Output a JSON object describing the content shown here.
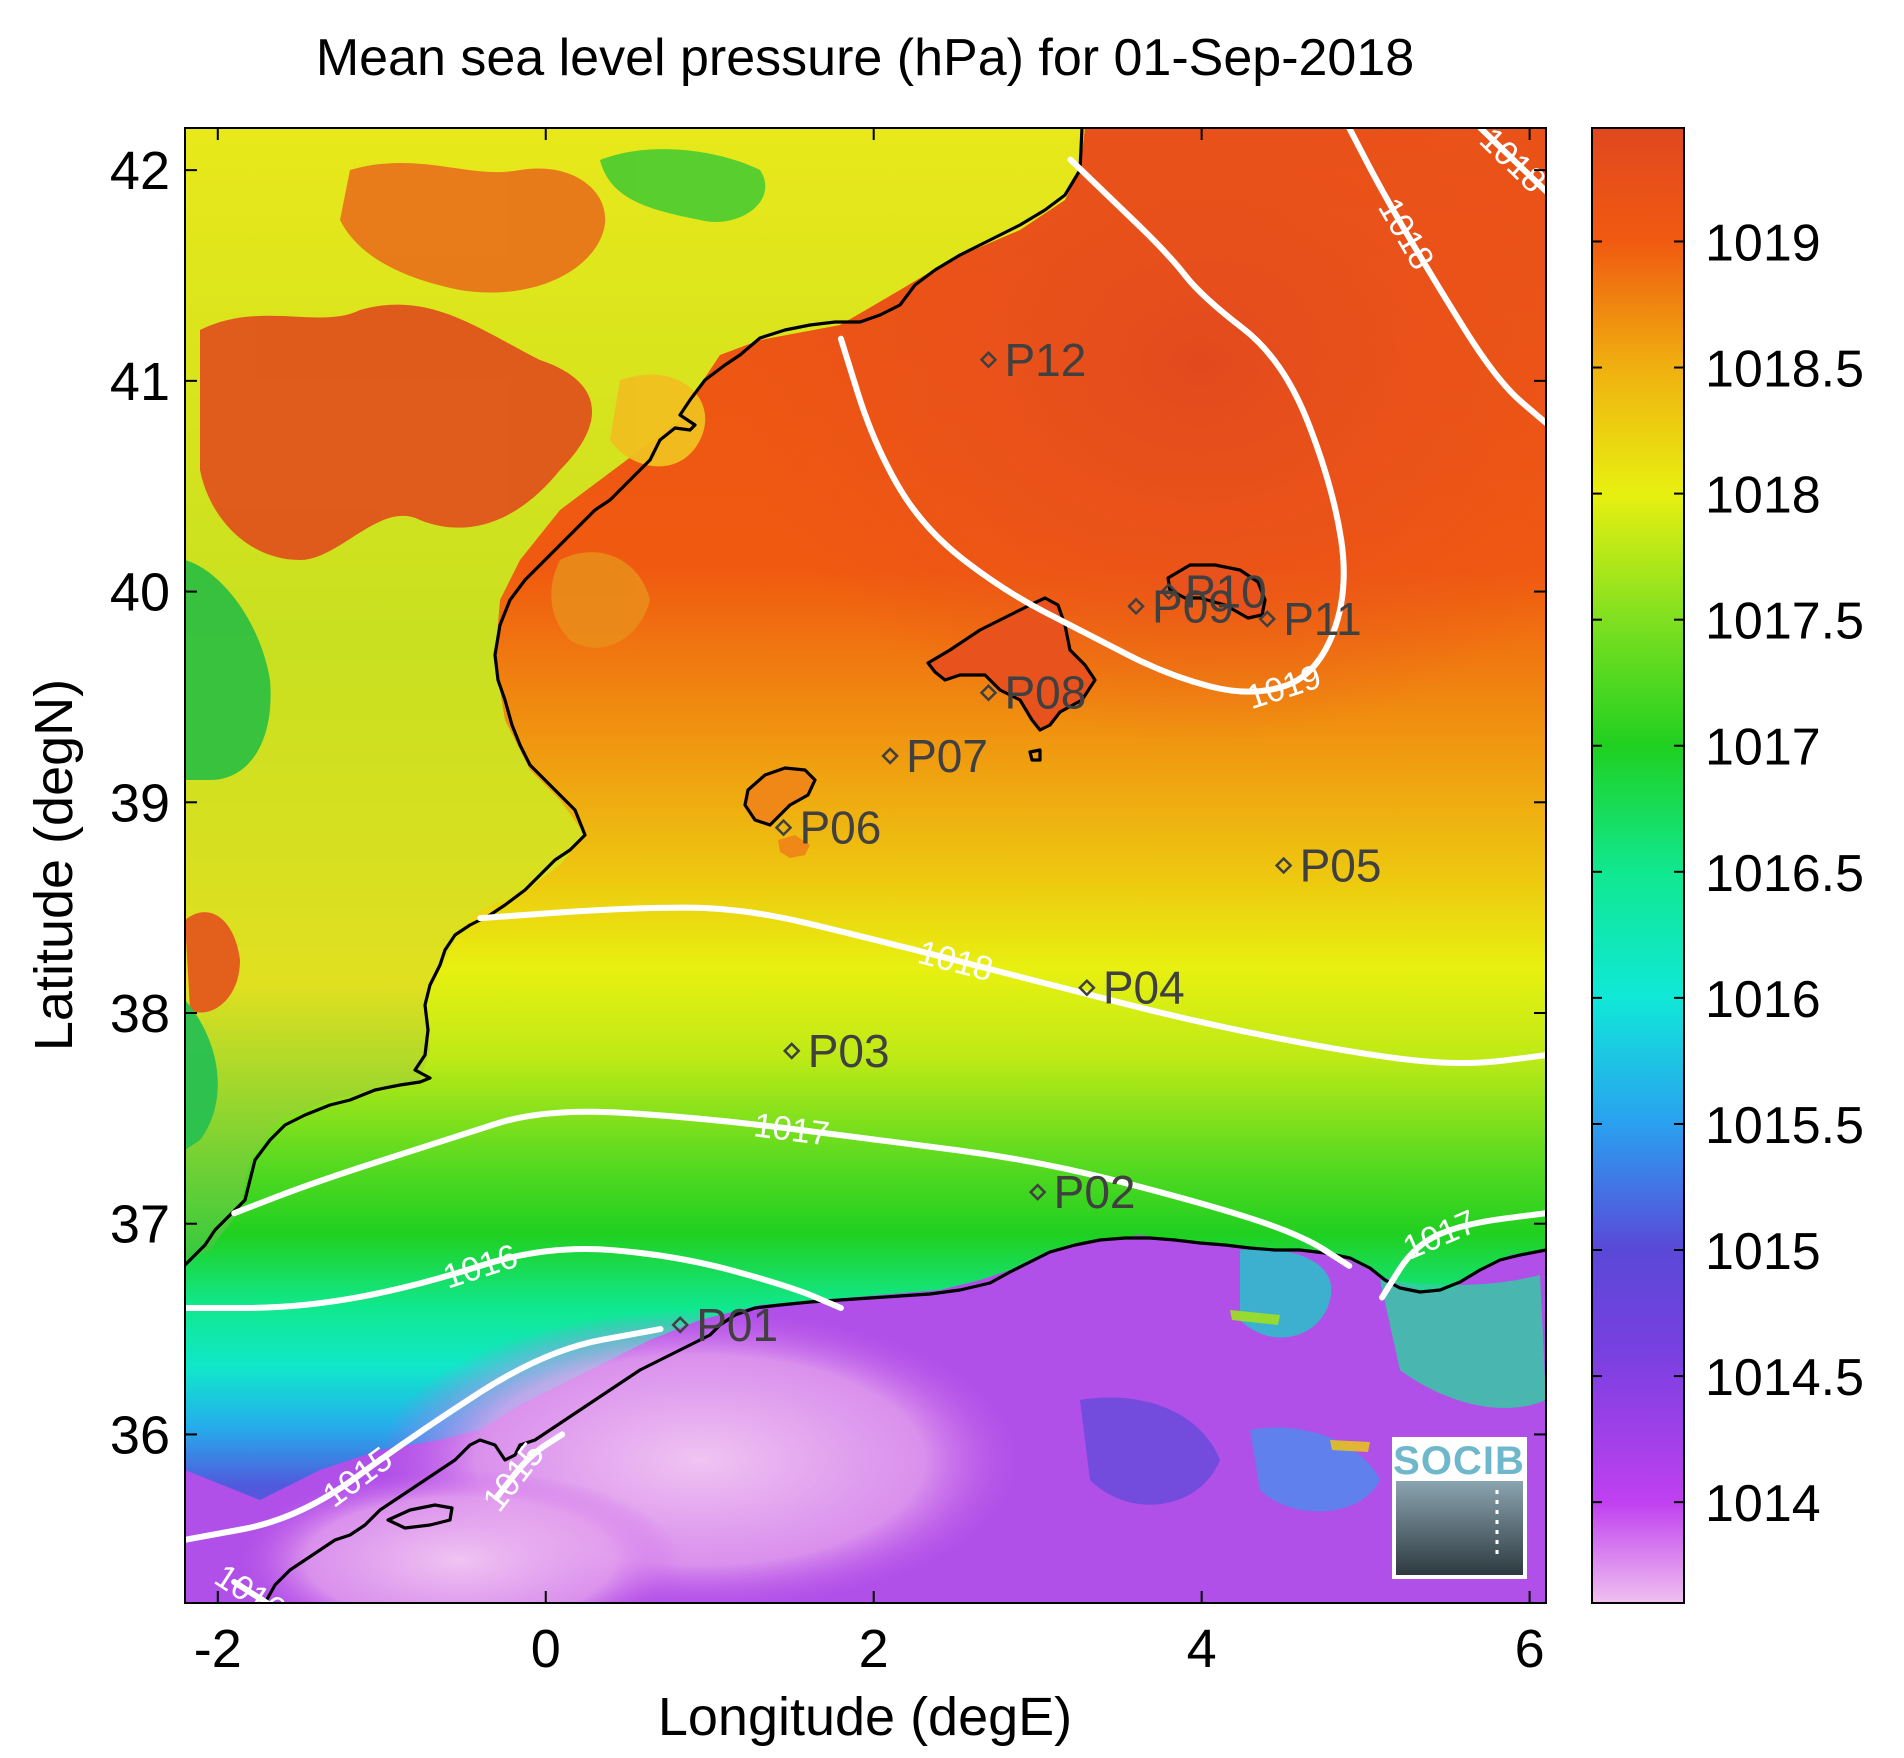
{
  "title": "Mean sea level pressure (hPa) for 01-Sep-2018",
  "logo_text": "SOCIB",
  "colors": {
    "land_low": "#1dbf3a",
    "land_mid": "#e8e81a",
    "land_high": "#e8501c",
    "contour": "#ffffff",
    "coastline": "#000000",
    "station": "#404040",
    "logo": "#6fb8cc"
  },
  "chart_data": {
    "type": "heatmap",
    "title": "Mean sea level pressure (hPa) for 01-Sep-2018",
    "xlabel": "Longitude (degE)",
    "ylabel": "Latitude (degN)",
    "xlim": [
      -2.2,
      6.1
    ],
    "ylim": [
      35.2,
      42.2
    ],
    "xticks": [
      -2,
      0,
      2,
      4,
      6
    ],
    "yticks": [
      36,
      37,
      38,
      39,
      40,
      41,
      42
    ],
    "colorbar": {
      "range": [
        1013.6,
        1019.45
      ],
      "ticks": [
        1014,
        1014.5,
        1015,
        1015.5,
        1016,
        1016.5,
        1017,
        1017.5,
        1018,
        1018.5,
        1019
      ],
      "colormap": [
        [
          1013.6,
          "#f0c0f0"
        ],
        [
          1014.0,
          "#c040f0"
        ],
        [
          1014.6,
          "#7840e0"
        ],
        [
          1015.0,
          "#5a48d8"
        ],
        [
          1015.5,
          "#2aa0f0"
        ],
        [
          1016.0,
          "#10e8d8"
        ],
        [
          1016.5,
          "#10e890"
        ],
        [
          1017.0,
          "#20d020"
        ],
        [
          1017.5,
          "#80e020"
        ],
        [
          1018.0,
          "#e8f010"
        ],
        [
          1018.5,
          "#f0b010"
        ],
        [
          1019.0,
          "#f05a10"
        ],
        [
          1019.45,
          "#e04820"
        ]
      ]
    },
    "contours": [
      {
        "level": "1015",
        "points": [
          [
            -2.2,
            35.5
          ],
          [
            -1.5,
            35.6
          ],
          [
            -0.8,
            36.0
          ],
          [
            0,
            36.4
          ],
          [
            0.7,
            36.5
          ]
        ]
      },
      {
        "level": "1015",
        "points": [
          [
            -0.3,
            35.7
          ],
          [
            -0.1,
            35.9
          ],
          [
            0.1,
            36.0
          ]
        ]
      },
      {
        "level": "1016",
        "points": [
          [
            -2.2,
            36.6
          ],
          [
            -1.5,
            36.6
          ],
          [
            -0.8,
            36.7
          ],
          [
            0,
            36.9
          ],
          [
            0.8,
            36.85
          ],
          [
            1.5,
            36.7
          ],
          [
            1.8,
            36.6
          ]
        ]
      },
      {
        "level": "1016",
        "points": [
          [
            -1.9,
            35.3
          ],
          [
            -1.7,
            35.2
          ]
        ]
      },
      {
        "level": "1017",
        "points": [
          [
            -1.9,
            37.05
          ],
          [
            -1.4,
            37.2
          ],
          [
            -0.6,
            37.4
          ],
          [
            0,
            37.55
          ],
          [
            1.0,
            37.5
          ],
          [
            2.0,
            37.4
          ],
          [
            3.0,
            37.3
          ],
          [
            4.0,
            37.1
          ],
          [
            4.6,
            36.95
          ],
          [
            4.9,
            36.8
          ]
        ]
      },
      {
        "level": "1017",
        "points": [
          [
            5.1,
            36.65
          ],
          [
            5.3,
            36.9
          ],
          [
            5.6,
            37.0
          ],
          [
            6.1,
            37.05
          ]
        ]
      },
      {
        "level": "1018",
        "points": [
          [
            -0.4,
            38.45
          ],
          [
            0.5,
            38.5
          ],
          [
            1.2,
            38.5
          ],
          [
            2.0,
            38.35
          ],
          [
            3.0,
            38.15
          ],
          [
            4.0,
            37.95
          ],
          [
            5.0,
            37.8
          ],
          [
            5.6,
            37.75
          ],
          [
            6.1,
            37.8
          ]
        ]
      },
      {
        "level": "1019",
        "points": [
          [
            1.8,
            41.2
          ],
          [
            2.0,
            40.7
          ],
          [
            2.3,
            40.3
          ],
          [
            2.8,
            40.0
          ],
          [
            3.3,
            39.8
          ],
          [
            3.8,
            39.6
          ],
          [
            4.3,
            39.5
          ],
          [
            4.7,
            39.6
          ],
          [
            4.9,
            40.0
          ],
          [
            4.8,
            40.5
          ],
          [
            4.5,
            41.1
          ],
          [
            4.0,
            41.4
          ],
          [
            3.8,
            41.6
          ],
          [
            3.4,
            41.9
          ],
          [
            3.2,
            42.05
          ]
        ]
      },
      {
        "level": "1018",
        "points": [
          [
            4.9,
            42.2
          ],
          [
            5.1,
            41.9
          ],
          [
            5.4,
            41.5
          ],
          [
            5.8,
            41.0
          ],
          [
            6.1,
            40.8
          ]
        ]
      },
      {
        "level": "1018",
        "points": [
          [
            5.7,
            42.2
          ],
          [
            6.1,
            41.9
          ]
        ]
      }
    ],
    "stations": [
      {
        "name": "P01",
        "lon": 0.82,
        "lat": 36.52
      },
      {
        "name": "P02",
        "lon": 3.0,
        "lat": 37.15
      },
      {
        "name": "P03",
        "lon": 1.5,
        "lat": 37.82
      },
      {
        "name": "P04",
        "lon": 3.3,
        "lat": 38.12
      },
      {
        "name": "P05",
        "lon": 4.5,
        "lat": 38.7
      },
      {
        "name": "P06",
        "lon": 1.45,
        "lat": 38.88
      },
      {
        "name": "P07",
        "lon": 2.1,
        "lat": 39.22
      },
      {
        "name": "P08",
        "lon": 2.7,
        "lat": 39.52
      },
      {
        "name": "P09",
        "lon": 3.6,
        "lat": 39.93
      },
      {
        "name": "P10",
        "lon": 3.8,
        "lat": 40.0
      },
      {
        "name": "P11",
        "lon": 4.4,
        "lat": 39.87
      },
      {
        "name": "P12",
        "lon": 2.7,
        "lat": 41.1
      }
    ]
  }
}
